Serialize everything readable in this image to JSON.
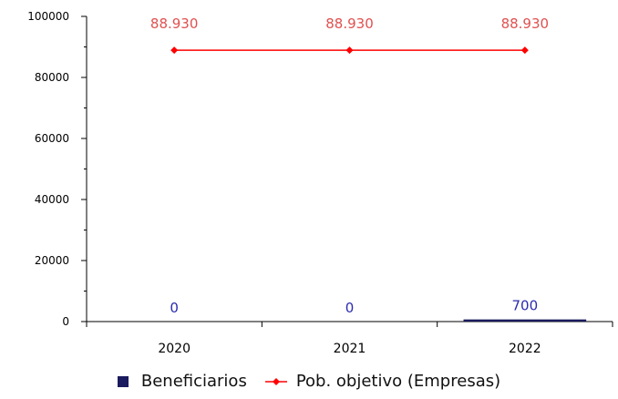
{
  "chart_data": {
    "type": "bar",
    "categories": [
      "2020",
      "2021",
      "2022"
    ],
    "series": [
      {
        "name": "Beneficiarios",
        "type": "bar",
        "values": [
          0,
          0,
          700
        ],
        "value_labels": [
          "0",
          "0",
          "700"
        ],
        "color": "#1a1a5e",
        "label_color": "#2b2bb0"
      },
      {
        "name": "Pob. objetivo (Empresas)",
        "type": "line",
        "values": [
          88930,
          88930,
          88930
        ],
        "value_labels": [
          "88.930",
          "88.930",
          "88.930"
        ],
        "color": "#ff0000",
        "label_color": "#e05050"
      }
    ],
    "y_ticks": [
      0,
      20000,
      40000,
      60000,
      80000,
      100000
    ],
    "y_tick_labels": [
      "0",
      "20000",
      "40000",
      "60000",
      "80000",
      "100000"
    ],
    "ylim": [
      0,
      100000
    ],
    "grid": false,
    "legend_position": "bottom"
  }
}
